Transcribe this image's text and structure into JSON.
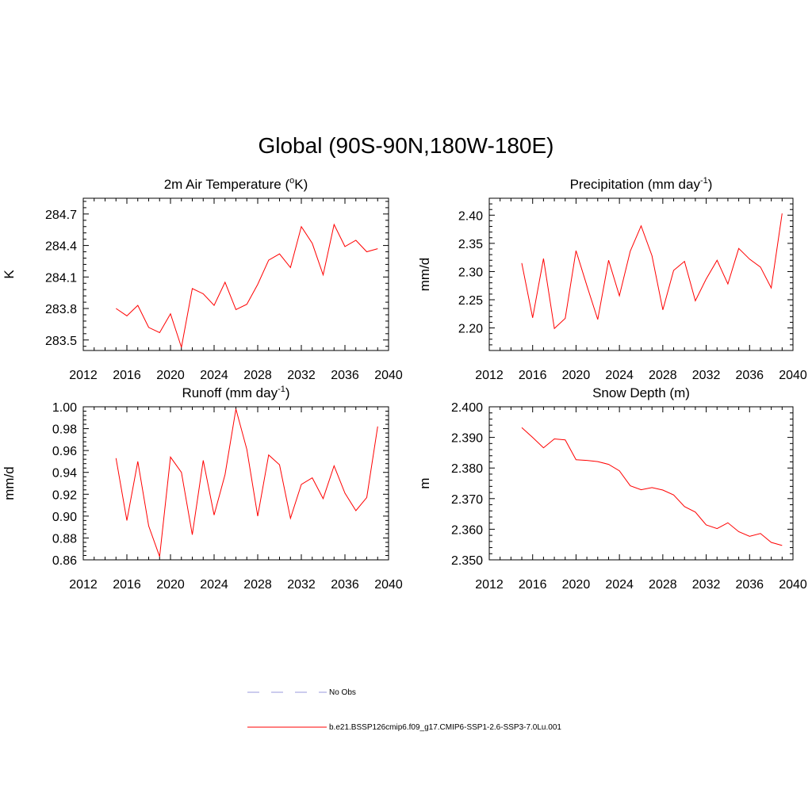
{
  "title": "Global (90S-90N,180W-180E)",
  "colors": {
    "series": "#ff0000",
    "obs": "#9999dd",
    "axis": "#000000"
  },
  "legend": [
    {
      "label": "No Obs",
      "style": "dashed",
      "color": "#9999dd"
    },
    {
      "label": "b.e21.BSSP126cmip6.f09_g17.CMIP6-SSP1-2.6-SSP3-7.0Lu.001",
      "style": "solid",
      "color": "#ff0000"
    }
  ],
  "chart_data": [
    {
      "type": "line",
      "title": "2m Air Temperature (",
      "title_sup": "o",
      "title_suffix": "K)",
      "ylabel": "K",
      "xlim": [
        2012,
        2040
      ],
      "xticks": [
        2012,
        2016,
        2020,
        2024,
        2028,
        2032,
        2036,
        2040
      ],
      "ylim": [
        283.4,
        284.85
      ],
      "yticks": [
        283.5,
        283.8,
        284.1,
        284.4,
        284.7
      ],
      "ytick_labels": [
        "283.5",
        "283.8",
        "284.1",
        "284.4",
        "284.7"
      ],
      "x": [
        2015,
        2016,
        2017,
        2018,
        2019,
        2020,
        2021,
        2022,
        2023,
        2024,
        2025,
        2026,
        2027,
        2028,
        2029,
        2030,
        2031,
        2032,
        2033,
        2034,
        2035,
        2036,
        2037,
        2038,
        2039
      ],
      "values": [
        283.8,
        283.73,
        283.83,
        283.62,
        283.57,
        283.75,
        283.43,
        283.99,
        283.94,
        283.83,
        284.05,
        283.79,
        283.84,
        284.03,
        284.26,
        284.32,
        284.19,
        284.58,
        284.42,
        284.12,
        284.6,
        284.39,
        284.45,
        284.34,
        284.37
      ]
    },
    {
      "type": "line",
      "title": "Precipitation (mm day",
      "title_sup": "-1",
      "title_suffix": ")",
      "ylabel": "mm/d",
      "xlim": [
        2012,
        2040
      ],
      "xticks": [
        2012,
        2016,
        2020,
        2024,
        2028,
        2032,
        2036,
        2040
      ],
      "ylim": [
        2.16,
        2.43
      ],
      "yticks": [
        2.2,
        2.25,
        2.3,
        2.35,
        2.4
      ],
      "ytick_labels": [
        "2.20",
        "2.25",
        "2.30",
        "2.35",
        "2.40"
      ],
      "x": [
        2015,
        2016,
        2017,
        2018,
        2019,
        2020,
        2021,
        2022,
        2023,
        2024,
        2025,
        2026,
        2027,
        2028,
        2029,
        2030,
        2031,
        2032,
        2033,
        2034,
        2035,
        2036,
        2037,
        2038,
        2039
      ],
      "values": [
        2.315,
        2.218,
        2.323,
        2.199,
        2.217,
        2.337,
        2.275,
        2.215,
        2.32,
        2.257,
        2.336,
        2.381,
        2.328,
        2.232,
        2.302,
        2.318,
        2.248,
        2.287,
        2.32,
        2.278,
        2.341,
        2.322,
        2.308,
        2.271,
        2.403
      ]
    },
    {
      "type": "line",
      "title": "Runoff (mm day",
      "title_sup": "-1",
      "title_suffix": ")",
      "ylabel": "mm/d",
      "xlim": [
        2012,
        2040
      ],
      "xticks": [
        2012,
        2016,
        2020,
        2024,
        2028,
        2032,
        2036,
        2040
      ],
      "ylim": [
        0.86,
        1.0
      ],
      "yticks": [
        0.86,
        0.88,
        0.9,
        0.92,
        0.94,
        0.96,
        0.98,
        1.0
      ],
      "ytick_labels": [
        "0.86",
        "0.88",
        "0.90",
        "0.92",
        "0.94",
        "0.96",
        "0.98",
        "1.00"
      ],
      "x": [
        2015,
        2016,
        2017,
        2018,
        2019,
        2020,
        2021,
        2022,
        2023,
        2024,
        2025,
        2026,
        2027,
        2028,
        2029,
        2030,
        2031,
        2032,
        2033,
        2034,
        2035,
        2036,
        2037,
        2038,
        2039
      ],
      "values": [
        0.953,
        0.896,
        0.95,
        0.891,
        0.863,
        0.954,
        0.94,
        0.883,
        0.951,
        0.901,
        0.938,
        0.998,
        0.961,
        0.9,
        0.956,
        0.947,
        0.898,
        0.929,
        0.935,
        0.916,
        0.946,
        0.921,
        0.905,
        0.917,
        0.982
      ]
    },
    {
      "type": "line",
      "title": "Snow Depth (m)",
      "title_sup": "",
      "title_suffix": "",
      "ylabel": "m",
      "xlim": [
        2012,
        2040
      ],
      "xticks": [
        2012,
        2016,
        2020,
        2024,
        2028,
        2032,
        2036,
        2040
      ],
      "ylim": [
        2.35,
        2.4
      ],
      "yticks": [
        2.35,
        2.36,
        2.37,
        2.38,
        2.39,
        2.4
      ],
      "ytick_labels": [
        "2.350",
        "2.360",
        "2.370",
        "2.380",
        "2.390",
        "2.400"
      ],
      "x": [
        2015,
        2016,
        2017,
        2018,
        2019,
        2020,
        2021,
        2022,
        2023,
        2024,
        2025,
        2026,
        2027,
        2028,
        2029,
        2030,
        2031,
        2032,
        2033,
        2034,
        2035,
        2036,
        2037,
        2038,
        2039
      ],
      "values": [
        2.3932,
        2.39,
        2.3866,
        2.3895,
        2.3892,
        2.3827,
        2.3825,
        2.3821,
        2.3812,
        2.3791,
        2.3742,
        2.3729,
        2.3736,
        2.3728,
        2.3712,
        2.3674,
        2.3656,
        2.3614,
        2.3602,
        2.3621,
        2.3592,
        2.3577,
        2.3586,
        2.3557,
        2.3547
      ]
    }
  ]
}
